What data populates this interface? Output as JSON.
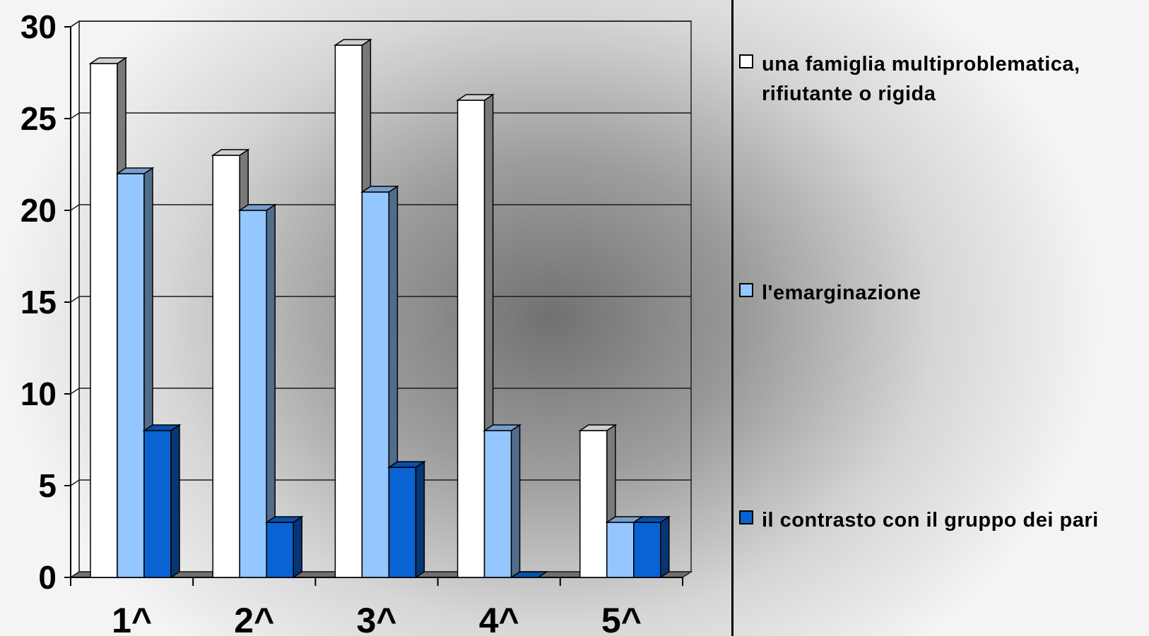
{
  "chart_data": {
    "type": "bar",
    "categories": [
      "1^",
      "2^",
      "3^",
      "4^",
      "5^"
    ],
    "series": [
      {
        "name": "una famiglia multiproblematica, rifiutante o rigida",
        "values": [
          28,
          23,
          29,
          26,
          8
        ],
        "color": "#ffffff"
      },
      {
        "name": "l'emarginazione",
        "values": [
          22,
          20,
          21,
          8,
          3
        ],
        "color": "#94c6ff"
      },
      {
        "name": "il contrasto con il gruppo dei pari",
        "values": [
          8,
          3,
          6,
          0,
          3
        ],
        "color": "#0a63d2"
      }
    ],
    "yticks": [
      "0",
      "5",
      "10",
      "15",
      "20",
      "25",
      "30"
    ],
    "ylim": [
      0,
      30
    ],
    "grid": true,
    "legend_position": "right",
    "title": "",
    "xlabel": "",
    "ylabel": ""
  }
}
